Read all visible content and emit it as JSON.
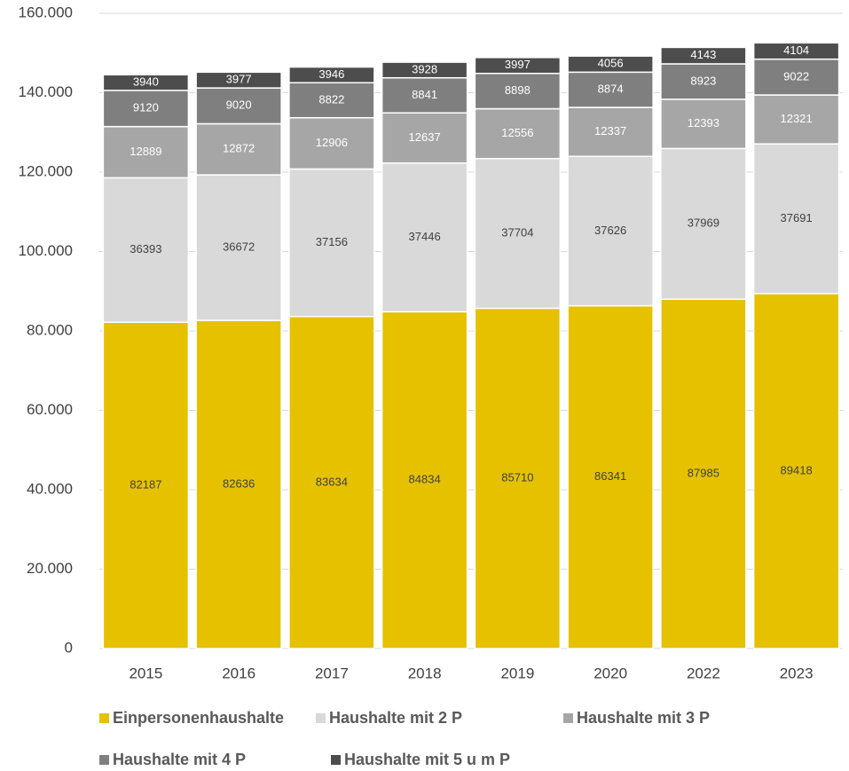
{
  "chart_data": {
    "type": "stacked_bar",
    "categories": [
      "2015",
      "2016",
      "2017",
      "2018",
      "2019",
      "2020",
      "2022",
      "2023"
    ],
    "series": [
      {
        "name": "Einpersonenhaushalte",
        "color": "#e5c100",
        "values": [
          82187,
          82636,
          83634,
          84834,
          85710,
          86341,
          87985,
          89418
        ]
      },
      {
        "name": "Haushalte mit 2 P",
        "color": "#d9d9d9",
        "values": [
          36393,
          36672,
          37156,
          37446,
          37704,
          37626,
          37969,
          37691
        ]
      },
      {
        "name": "Haushalte mit 3 P",
        "color": "#a6a6a6",
        "values": [
          12889,
          12872,
          12906,
          12637,
          12556,
          12337,
          12393,
          12321
        ]
      },
      {
        "name": "Haushalte mit 4 P",
        "color": "#7f7f7f",
        "values": [
          9120,
          9020,
          8822,
          8841,
          8898,
          8874,
          8923,
          9022
        ]
      },
      {
        "name": "Haushalte mit 5 u m P",
        "color": "#4d4d4d",
        "values": [
          3940,
          3977,
          3946,
          3928,
          3997,
          4056,
          4143,
          4104
        ]
      }
    ],
    "ylim": [
      0,
      160000
    ],
    "yticks": [
      0,
      {
        "value": 20000,
        "label": "20.000"
      },
      {
        "value": 40000,
        "label": "40.000"
      },
      {
        "value": 60000,
        "label": "60.000"
      },
      {
        "value": 80000,
        "label": "80.000"
      },
      {
        "value": 100000,
        "label": "100.000"
      },
      {
        "value": 120000,
        "label": "120.000"
      },
      {
        "value": 140000,
        "label": "140.000"
      },
      {
        "value": 160000,
        "label": "160.000"
      }
    ],
    "grid": true,
    "legend": "bottom"
  }
}
